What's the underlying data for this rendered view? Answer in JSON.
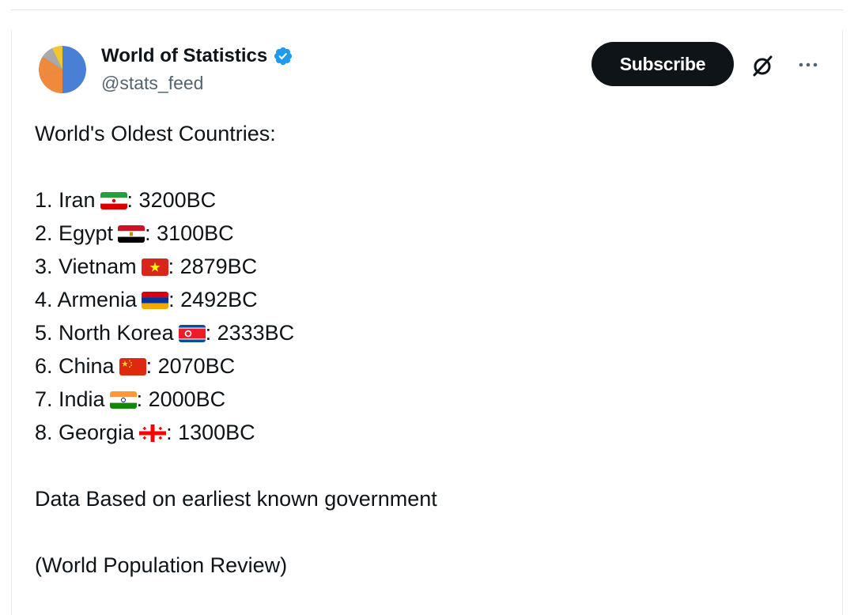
{
  "author": {
    "display_name": "World of Statistics",
    "handle": "@stats_feed",
    "verified": true
  },
  "actions": {
    "subscribe_label": "Subscribe"
  },
  "icons": {
    "verified": "verified-badge-icon",
    "grok": "grok-icon",
    "more": "more-options-icon"
  },
  "colors": {
    "verified_blue": "#1d9bf0",
    "button_bg": "#0f1419",
    "handle_gray": "#536471"
  },
  "tweet": {
    "heading": "World's Oldest Countries:",
    "items": [
      {
        "prefix": "1. Iran",
        "flag": "iran-flag",
        "suffix": ": 3200BC"
      },
      {
        "prefix": "2. Egypt",
        "flag": "egypt-flag",
        "suffix": ": 3100BC"
      },
      {
        "prefix": "3. Vietnam",
        "flag": "vietnam-flag",
        "suffix": ": 2879BC"
      },
      {
        "prefix": "4. Armenia",
        "flag": "armenia-flag",
        "suffix": ": 2492BC"
      },
      {
        "prefix": "5. North Korea",
        "flag": "north-korea-flag",
        "suffix": ": 2333BC"
      },
      {
        "prefix": "6. China",
        "flag": "china-flag",
        "suffix": ": 2070BC"
      },
      {
        "prefix": "7. India",
        "flag": "india-flag",
        "suffix": ": 2000BC"
      },
      {
        "prefix": "8. Georgia",
        "flag": "georgia-flag",
        "suffix": ": 1300BC"
      }
    ],
    "note": "Data Based on earliest known government",
    "source": "(World Population Review)"
  }
}
